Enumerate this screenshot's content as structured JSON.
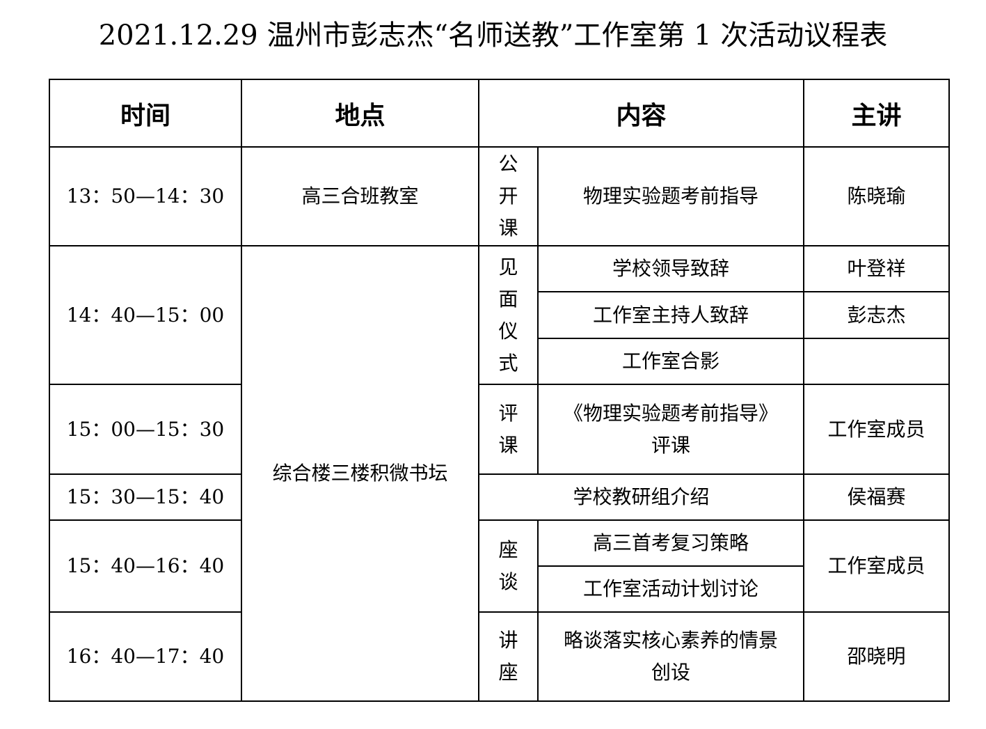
{
  "title": "2021.12.29 温州市彭志杰“名师送教”工作室第 1 次活动议程表",
  "headers": {
    "time": "时间",
    "place": "地点",
    "content": "内容",
    "speaker": "主讲"
  },
  "rows": {
    "r1": {
      "time": "13：50—14：30",
      "place": "高三合班教室",
      "category": [
        "公",
        "开",
        "课"
      ],
      "content": "物理实验题考前指导",
      "speaker": "陈晓瑜"
    },
    "r2": {
      "time": "14：40—15：00",
      "place": "综合楼三楼积微书坛",
      "category": [
        "见",
        "面",
        "仪",
        "式"
      ],
      "items": [
        {
          "content": "学校领导致辞",
          "speaker": "叶登祥"
        },
        {
          "content": "工作室主持人致辞",
          "speaker": "彭志杰"
        },
        {
          "content": "工作室合影",
          "speaker": ""
        }
      ]
    },
    "r3": {
      "time": "15：00—15：30",
      "category": [
        "评",
        "课"
      ],
      "content_line1": "《物理实验题考前指导》",
      "content_line2": "评课",
      "speaker": "工作室成员"
    },
    "r4": {
      "time": "15：30—15：40",
      "content": "学校教研组介绍",
      "speaker": "侯福赛"
    },
    "r5": {
      "time": "15：40—16：40",
      "category": [
        "座",
        "谈"
      ],
      "items": [
        {
          "content": "高三首考复习策略"
        },
        {
          "content": "工作室活动计划讨论"
        }
      ],
      "speaker": "工作室成员"
    },
    "r6": {
      "time": "16：40—17：40",
      "category": [
        "讲",
        "座"
      ],
      "content_line1": "略谈落实核心素养的情景",
      "content_line2": "创设",
      "speaker": "邵晓明"
    }
  }
}
